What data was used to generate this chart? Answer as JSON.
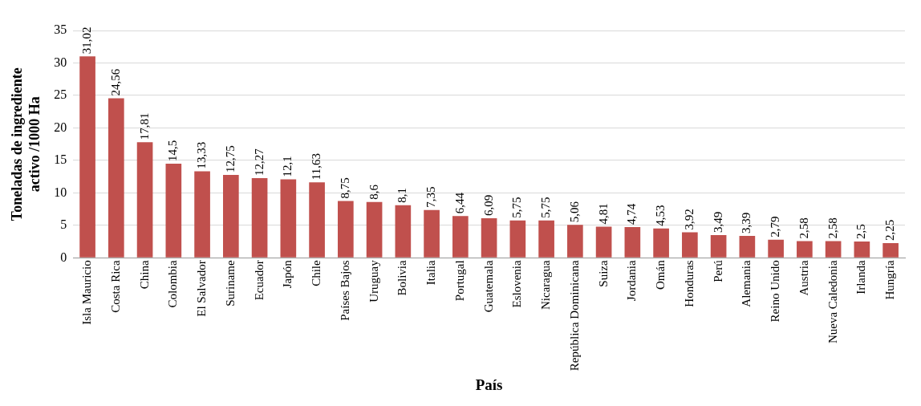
{
  "chart_data": {
    "type": "bar",
    "xlabel": "País",
    "ylabel": "Toneladas de ingrediente\nactivo /1000 Ha",
    "categories": [
      "Isla Mauricio",
      "Costa Rica",
      "China",
      "Colombia",
      "El Salvador",
      "Suriname",
      "Ecuador",
      "Japón",
      "Chile",
      "Países Bajos",
      "Uruguay",
      "Bolivia",
      "Italia",
      "Portugal",
      "Guatemala",
      "Eslovenia",
      "Nicaragua",
      "República Dominicana",
      "Suiza",
      "Jordania",
      "Omán",
      "Honduras",
      "Perú",
      "Alemania",
      "Reino Unido",
      "Austria",
      "Nueva Caledonia",
      "Irlanda",
      "Hungría"
    ],
    "values": [
      31.02,
      24.56,
      17.81,
      14.5,
      13.33,
      12.75,
      12.27,
      12.1,
      11.63,
      8.75,
      8.6,
      8.1,
      7.35,
      6.44,
      6.09,
      5.75,
      5.75,
      5.06,
      4.81,
      4.74,
      4.53,
      3.92,
      3.49,
      3.39,
      2.79,
      2.58,
      2.58,
      2.5,
      2.25
    ],
    "value_labels": [
      "31,02",
      "24,56",
      "17,81",
      "14,5",
      "13,33",
      "12,75",
      "12,27",
      "12,1",
      "11,63",
      "8,75",
      "8,6",
      "8,1",
      "7,35",
      "6,44",
      "6,09",
      "5,75",
      "5,75",
      "5,06",
      "4,81",
      "4,74",
      "4,53",
      "3,92",
      "3,49",
      "3,39",
      "2,79",
      "2,58",
      "2,58",
      "2,5",
      "2,25"
    ],
    "color": "#c0504d",
    "ylim": [
      0,
      35
    ],
    "yticks": [
      0,
      5,
      10,
      15,
      20,
      25,
      30,
      35
    ],
    "grid": "y"
  }
}
